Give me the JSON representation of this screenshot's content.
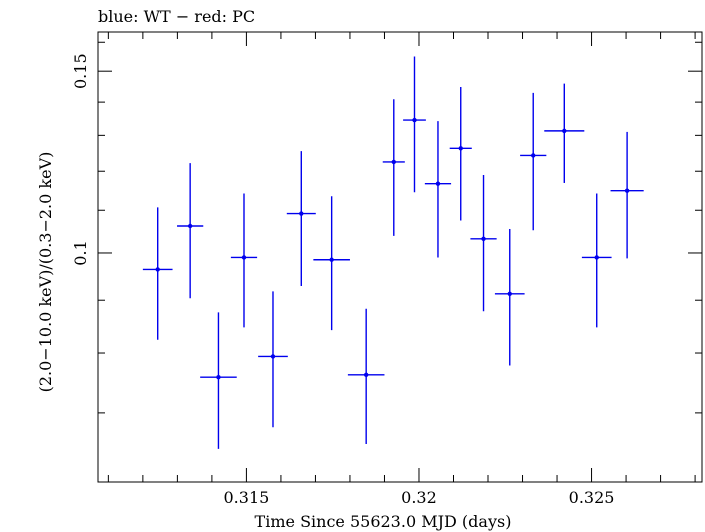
{
  "chart_data": {
    "type": "scatter",
    "title": "blue: WT − red: PC",
    "xlabel": "Time Since 55623.0 MJD (days)",
    "ylabel": "(2.0−10.0 keV)/(0.3−2.0 keV)",
    "xlim": [
      0.3107,
      0.3282
    ],
    "ylim": [
      0.06,
      0.1637
    ],
    "x_ticks": [
      {
        "value": 0.315,
        "label": "0.315"
      },
      {
        "value": 0.32,
        "label": "0.32"
      },
      {
        "value": 0.325,
        "label": "0.325"
      }
    ],
    "y_ticks": [
      {
        "value": 0.1,
        "label": "0.1"
      },
      {
        "value": 0.15,
        "label": "0.15"
      }
    ],
    "series": [
      {
        "color": "#0000ee",
        "points": [
          {
            "x": 0.31243,
            "xerr": 0.00043,
            "y": 0.0964,
            "ylo": 0.0824,
            "yhi": 0.1107
          },
          {
            "x": 0.31337,
            "xerr": 0.00038,
            "y": 0.1062,
            "ylo": 0.0904,
            "yhi": 0.1222
          },
          {
            "x": 0.31419,
            "xerr": 0.00053,
            "y": 0.0758,
            "ylo": 0.0646,
            "yhi": 0.0876
          },
          {
            "x": 0.31493,
            "xerr": 0.00038,
            "y": 0.099,
            "ylo": 0.0847,
            "yhi": 0.1142
          },
          {
            "x": 0.31577,
            "xerr": 0.00043,
            "y": 0.0794,
            "ylo": 0.0678,
            "yhi": 0.0918
          },
          {
            "x": 0.31659,
            "xerr": 0.00042,
            "y": 0.1092,
            "ylo": 0.0929,
            "yhi": 0.1255
          },
          {
            "x": 0.31747,
            "xerr": 0.00053,
            "y": 0.0985,
            "ylo": 0.0842,
            "yhi": 0.1135
          },
          {
            "x": 0.31847,
            "xerr": 0.00053,
            "y": 0.0762,
            "ylo": 0.0653,
            "yhi": 0.0883
          },
          {
            "x": 0.31927,
            "xerr": 0.00032,
            "y": 0.1225,
            "ylo": 0.1039,
            "yhi": 0.1409
          },
          {
            "x": 0.31987,
            "xerr": 0.00033,
            "y": 0.1345,
            "ylo": 0.1145,
            "yhi": 0.155
          },
          {
            "x": 0.32055,
            "xerr": 0.00038,
            "y": 0.1167,
            "ylo": 0.099,
            "yhi": 0.1342
          },
          {
            "x": 0.32121,
            "xerr": 0.00032,
            "y": 0.1263,
            "ylo": 0.1075,
            "yhi": 0.1448
          },
          {
            "x": 0.32187,
            "xerr": 0.00038,
            "y": 0.1032,
            "ylo": 0.0878,
            "yhi": 0.119
          },
          {
            "x": 0.32263,
            "xerr": 0.00043,
            "y": 0.0913,
            "ylo": 0.0778,
            "yhi": 0.1055
          },
          {
            "x": 0.32331,
            "xerr": 0.00038,
            "y": 0.1243,
            "ylo": 0.1052,
            "yhi": 0.1429
          },
          {
            "x": 0.32421,
            "xerr": 0.00058,
            "y": 0.1313,
            "ylo": 0.1169,
            "yhi": 0.1459
          },
          {
            "x": 0.32515,
            "xerr": 0.00043,
            "y": 0.099,
            "ylo": 0.0847,
            "yhi": 0.1142
          },
          {
            "x": 0.32603,
            "xerr": 0.00048,
            "y": 0.1149,
            "ylo": 0.0988,
            "yhi": 0.131
          }
        ]
      }
    ]
  }
}
